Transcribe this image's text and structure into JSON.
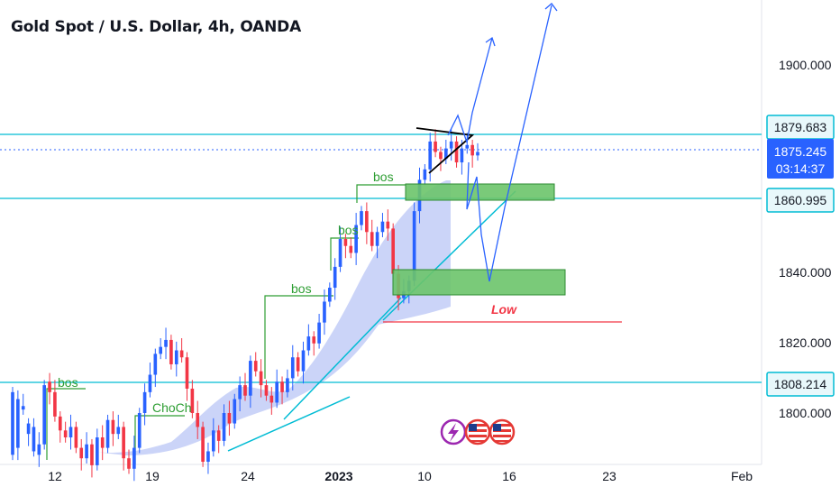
{
  "header": {
    "title": "Gold Spot / U.S. Dollar, 4h, OANDA"
  },
  "colors": {
    "bull": "#2962ff",
    "bear": "#f23645",
    "level": "#00bcd4",
    "bos": "#2e9e33",
    "zone_fill": "#6cc46a",
    "zone_stroke": "#2e8b32",
    "band": "#b9c6f6",
    "projection": "#2962ff",
    "low": "#f23645",
    "pennant": "#000000"
  },
  "chart_data": {
    "type": "candlestick",
    "title": "Gold Spot / U.S. Dollar, 4h, OANDA",
    "x_ticks": [
      "12",
      "19",
      "24",
      "2023",
      "10",
      "16",
      "23",
      "Feb"
    ],
    "y_ticks": [
      "1900.000",
      "1840.000",
      "1820.000",
      "1800.000"
    ],
    "ylim": [
      1785,
      1915
    ],
    "grid": false,
    "level_badges": [
      {
        "label": "1879.683",
        "value": 1879.683,
        "style": "level"
      },
      {
        "label": "1860.995",
        "value": 1860.995,
        "style": "level"
      },
      {
        "label": "1808.214",
        "value": 1808.214,
        "style": "level"
      }
    ],
    "current_price": {
      "label": "1875.245",
      "value": 1875.245,
      "countdown": "03:14:37"
    },
    "annotations": {
      "bos_labels": [
        "bos",
        "bos",
        "bos",
        "bos"
      ],
      "choch_label": "ChoCh",
      "low_label": "Low",
      "low_level": 1827
    },
    "demand_zones": [
      {
        "from": 1855,
        "to": 1860
      },
      {
        "from": 1832,
        "to": 1840
      }
    ],
    "price_path": [
      [
        1788,
        1806
      ],
      [
        1790,
        1804
      ],
      [
        1801,
        1802
      ],
      [
        1794,
        1797
      ],
      [
        1789,
        1796
      ],
      [
        1788,
        1791
      ],
      [
        1791,
        1808
      ],
      [
        1809,
        1806
      ],
      [
        1806,
        1799
      ],
      [
        1799,
        1795
      ],
      [
        1795,
        1793
      ],
      [
        1793,
        1796
      ],
      [
        1796,
        1790
      ],
      [
        1790,
        1787
      ],
      [
        1787,
        1791
      ],
      [
        1791,
        1785
      ],
      [
        1785,
        1793
      ],
      [
        1793,
        1790
      ],
      [
        1790,
        1798
      ],
      [
        1798,
        1794
      ],
      [
        1794,
        1796
      ],
      [
        1796,
        1787
      ],
      [
        1787,
        1784
      ],
      [
        1784,
        1790
      ],
      [
        1790,
        1800
      ],
      [
        1800,
        1806
      ],
      [
        1806,
        1811
      ],
      [
        1811,
        1817
      ],
      [
        1817,
        1819
      ],
      [
        1819,
        1821
      ],
      [
        1821,
        1814
      ],
      [
        1814,
        1818
      ],
      [
        1818,
        1816
      ],
      [
        1816,
        1807
      ],
      [
        1807,
        1800
      ],
      [
        1800,
        1796
      ],
      [
        1796,
        1786
      ],
      [
        1786,
        1789
      ],
      [
        1789,
        1795
      ],
      [
        1795,
        1792
      ],
      [
        1792,
        1800
      ],
      [
        1800,
        1797
      ],
      [
        1797,
        1804
      ],
      [
        1804,
        1808
      ],
      [
        1808,
        1805
      ],
      [
        1805,
        1815
      ],
      [
        1815,
        1812
      ],
      [
        1812,
        1808
      ],
      [
        1808,
        1805
      ],
      [
        1805,
        1803
      ],
      [
        1803,
        1809
      ],
      [
        1809,
        1806
      ],
      [
        1806,
        1810
      ],
      [
        1810,
        1816
      ],
      [
        1816,
        1812
      ],
      [
        1812,
        1818
      ],
      [
        1818,
        1822
      ],
      [
        1822,
        1820
      ],
      [
        1820,
        1826
      ],
      [
        1826,
        1832
      ],
      [
        1832,
        1836
      ],
      [
        1836,
        1842
      ],
      [
        1842,
        1850
      ],
      [
        1850,
        1848
      ],
      [
        1848,
        1846
      ],
      [
        1846,
        1854
      ],
      [
        1854,
        1858
      ],
      [
        1858,
        1852
      ],
      [
        1852,
        1848
      ],
      [
        1848,
        1852
      ],
      [
        1852,
        1855
      ],
      [
        1855,
        1853
      ],
      [
        1853,
        1840
      ],
      [
        1840,
        1833
      ],
      [
        1833,
        1835
      ],
      [
        1835,
        1838
      ],
      [
        1838,
        1858
      ],
      [
        1858,
        1867
      ],
      [
        1867,
        1870
      ],
      [
        1870,
        1878
      ],
      [
        1878,
        1875
      ],
      [
        1875,
        1873
      ],
      [
        1873,
        1876
      ],
      [
        1876,
        1878
      ],
      [
        1878,
        1872
      ],
      [
        1872,
        1876
      ],
      [
        1876,
        1877
      ],
      [
        1877,
        1874
      ],
      [
        1874,
        1875
      ]
    ]
  }
}
